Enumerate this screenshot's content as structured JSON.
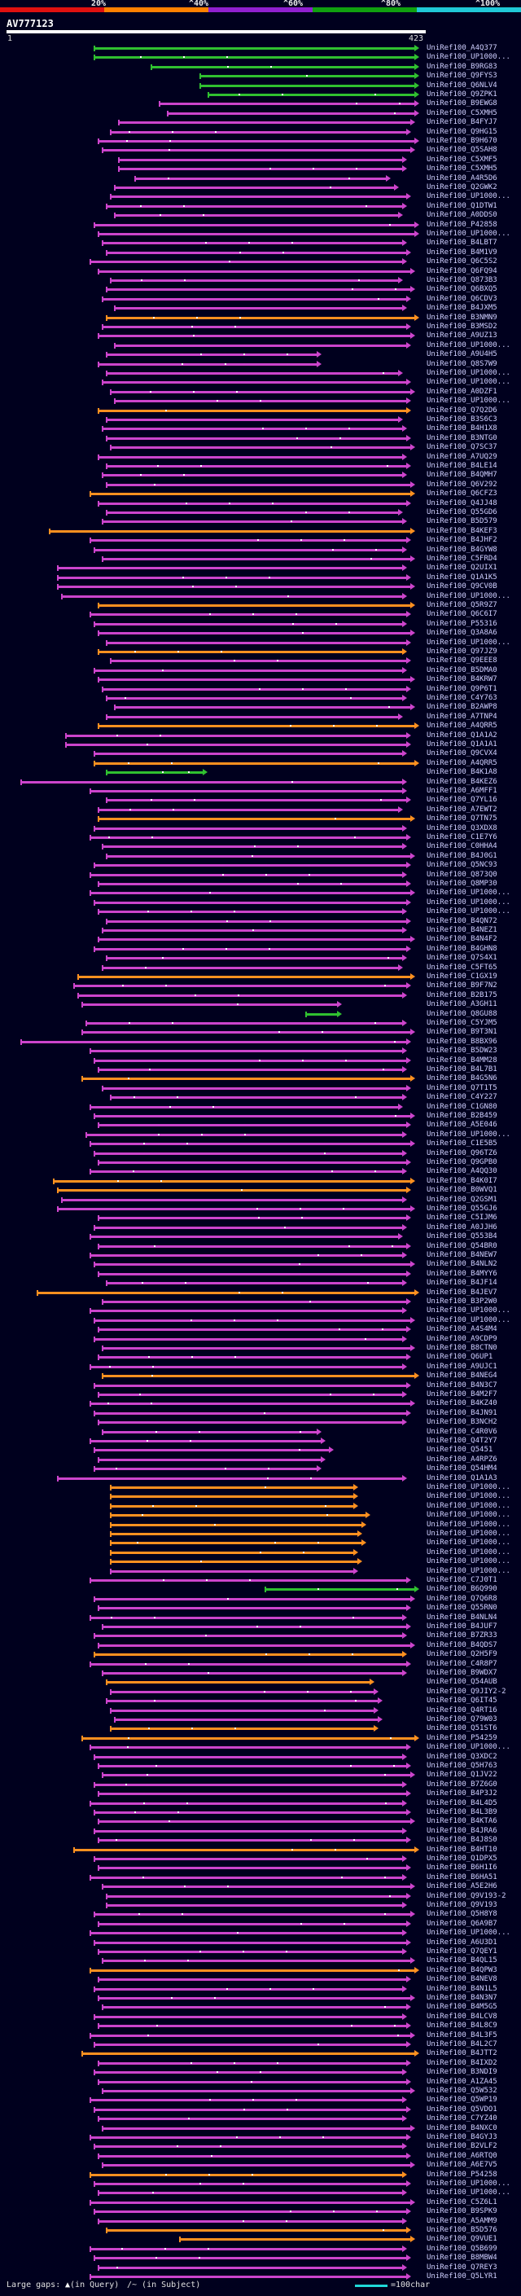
{
  "legend": {
    "colors": [
      "#e01010",
      "#ff8000",
      "#9020d0",
      "#10a010",
      "#20c8d8"
    ],
    "labels": [
      "20%",
      "^40%",
      "^60%",
      "^80%",
      "^100%"
    ]
  },
  "query": {
    "name": "AV777123",
    "start": "1",
    "end": "423"
  },
  "color_map": {
    "o": "#ff9020",
    "m": "#cc44cc",
    "g": "#30c030"
  },
  "hits": [
    [
      "UniRef100_A4Q377",
      115,
      515,
      "g"
    ],
    [
      "UniRef100_UP1000...",
      115,
      515,
      "g"
    ],
    [
      "UniRef100_B9RG83",
      185,
      515,
      "g"
    ],
    [
      "UniRef100_Q9FYS3",
      245,
      515,
      "g"
    ],
    [
      "UniRef100_Q6NLV4",
      245,
      515,
      "g"
    ],
    [
      "UniRef100_Q9ZPK1",
      255,
      515,
      "g"
    ],
    [
      "UniRef100_B9EWG8",
      195,
      515,
      "m"
    ],
    [
      "UniRef100_C5XMH5",
      205,
      515,
      "m"
    ],
    [
      "UniRef100_B4FYJ7",
      145,
      510,
      "m"
    ],
    [
      "UniRef100_Q9HG15",
      135,
      505,
      "m"
    ],
    [
      "UniRef100_B9H670",
      120,
      515,
      "m"
    ],
    [
      "UniRef100_Q5SAH8",
      125,
      510,
      "m"
    ],
    [
      "UniRef100_C5XMF5",
      145,
      500,
      "m"
    ],
    [
      "UniRef100_C5XMH5",
      145,
      500,
      "m"
    ],
    [
      "UniRef100_A4R5D6",
      165,
      480,
      "m"
    ],
    [
      "UniRef100_Q2GWK2",
      140,
      490,
      "m"
    ],
    [
      "UniRef100_UP1000...",
      135,
      505,
      "m"
    ],
    [
      "UniRef100_Q1DTW1",
      130,
      500,
      "m"
    ],
    [
      "UniRef100_A0DDS0",
      140,
      495,
      "m"
    ],
    [
      "UniRef100_P42858",
      115,
      515,
      "m"
    ],
    [
      "UniRef100_UP1000...",
      120,
      515,
      "m"
    ],
    [
      "UniRef100_B4LBT7",
      125,
      500,
      "m"
    ],
    [
      "UniRef100_B4M1V9",
      130,
      505,
      "m"
    ],
    [
      "UniRef100_Q6C5S2",
      110,
      500,
      "m"
    ],
    [
      "UniRef100_Q6FQ94",
      120,
      510,
      "m"
    ],
    [
      "UniRef100_Q873B3",
      135,
      495,
      "m"
    ],
    [
      "UniRef100_Q6BXQ5",
      130,
      510,
      "m"
    ],
    [
      "UniRef100_Q6CDV3",
      125,
      505,
      "m"
    ],
    [
      "UniRef100_B4JXM5",
      140,
      500,
      "m"
    ],
    [
      "UniRef100_B3NMN9",
      130,
      515,
      "o"
    ],
    [
      "UniRef100_B3MSD2",
      125,
      505,
      "m"
    ],
    [
      "UniRef100_A9UZ13",
      120,
      510,
      "m"
    ],
    [
      "UniRef100_UP1000...",
      140,
      505,
      "m"
    ],
    [
      "UniRef100_A9U4H5",
      130,
      395,
      "m"
    ],
    [
      "UniRef100_Q8S7W9",
      120,
      395,
      "m"
    ],
    [
      "UniRef100_UP1000...",
      130,
      495,
      "m"
    ],
    [
      "UniRef100_UP1000...",
      125,
      505,
      "m"
    ],
    [
      "UniRef100_A0DZF1",
      135,
      510,
      "m"
    ],
    [
      "UniRef100_UP1000...",
      140,
      505,
      "m"
    ],
    [
      "UniRef100_Q7Q2D6",
      120,
      505,
      "o"
    ],
    [
      "UniRef100_B3S6C3",
      130,
      495,
      "m"
    ],
    [
      "UniRef100_B4H1X8",
      125,
      500,
      "m"
    ],
    [
      "UniRef100_B3NTG0",
      130,
      505,
      "m"
    ],
    [
      "UniRef100_Q7SC37",
      135,
      510,
      "m"
    ],
    [
      "UniRef100_A7UQ29",
      120,
      500,
      "m"
    ],
    [
      "UniRef100_B4LE14",
      130,
      505,
      "m"
    ],
    [
      "UniRef100_B4QMH7",
      125,
      500,
      "m"
    ],
    [
      "UniRef100_Q6V292",
      130,
      510,
      "m"
    ],
    [
      "UniRef100_Q6CFZ3",
      110,
      510,
      "o"
    ],
    [
      "UniRef100_Q4JJ48",
      120,
      505,
      "m"
    ],
    [
      "UniRef100_Q55GD6",
      130,
      495,
      "m"
    ],
    [
      "UniRef100_B5D579",
      125,
      500,
      "m"
    ],
    [
      "UniRef100_B4KEF3",
      60,
      510,
      "o"
    ],
    [
      "UniRef100_B4JHF2",
      110,
      505,
      "m"
    ],
    [
      "UniRef100_B4GYW8",
      115,
      500,
      "m"
    ],
    [
      "UniRef100_C5FRD4",
      125,
      510,
      "m"
    ],
    [
      "UniRef100_Q2UIX1",
      70,
      500,
      "m"
    ],
    [
      "UniRef100_Q1A1K5",
      70,
      505,
      "m"
    ],
    [
      "UniRef100_Q9CV0B",
      70,
      510,
      "m"
    ],
    [
      "UniRef100_UP1000...",
      75,
      500,
      "m"
    ],
    [
      "UniRef100_Q5R9Z7",
      120,
      510,
      "o"
    ],
    [
      "UniRef100_Q6C6I7",
      110,
      505,
      "m"
    ],
    [
      "UniRef100_P55316",
      115,
      500,
      "m"
    ],
    [
      "UniRef100_Q3A8A6",
      120,
      510,
      "m"
    ],
    [
      "UniRef100_UP1000...",
      130,
      505,
      "m"
    ],
    [
      "UniRef100_Q97JZ9",
      120,
      500,
      "o"
    ],
    [
      "UniRef100_Q9EEE8",
      135,
      505,
      "m"
    ],
    [
      "UniRef100_B5DMA0",
      115,
      500,
      "m"
    ],
    [
      "UniRef100_B4KRW7",
      120,
      510,
      "m"
    ],
    [
      "UniRef100_Q9P6T1",
      125,
      505,
      "m"
    ],
    [
      "UniRef100_C4Y763",
      130,
      500,
      "m"
    ],
    [
      "UniRef100_B2AWP8",
      140,
      510,
      "m"
    ],
    [
      "UniRef100_A7TNP4",
      130,
      495,
      "m"
    ],
    [
      "UniRef100_A4QRR5",
      120,
      515,
      "o"
    ],
    [
      "UniRef100_Q1A1A2",
      80,
      505,
      "m"
    ],
    [
      "UniRef100_Q1A1A1",
      80,
      505,
      "m"
    ],
    [
      "UniRef100_Q9CVX4",
      115,
      500,
      "m"
    ],
    [
      "UniRef100_A4QRR5",
      115,
      515,
      "o"
    ],
    [
      "UniRef100_B4K1A8",
      130,
      255,
      "g"
    ],
    [
      "UniRef100_B4KEZ6",
      25,
      500,
      "m"
    ],
    [
      "UniRef100_A6MFF1",
      110,
      500,
      "m"
    ],
    [
      "UniRef100_Q7YL16",
      130,
      505,
      "m"
    ],
    [
      "UniRef100_A7EWT2",
      120,
      495,
      "m"
    ],
    [
      "UniRef100_Q7TN75",
      120,
      510,
      "o"
    ],
    [
      "UniRef100_Q3XDX8",
      115,
      500,
      "m"
    ],
    [
      "UniRef100_C1E7Y6",
      110,
      505,
      "m"
    ],
    [
      "UniRef100_C0HHA4",
      125,
      500,
      "m"
    ],
    [
      "UniRef100_B4J0G1",
      130,
      510,
      "m"
    ],
    [
      "UniRef100_Q5NC93",
      115,
      505,
      "m"
    ],
    [
      "UniRef100_Q873Q0",
      110,
      500,
      "m"
    ],
    [
      "UniRef100_Q8MP30",
      120,
      505,
      "m"
    ],
    [
      "UniRef100_UP1000...",
      110,
      510,
      "m"
    ],
    [
      "UniRef100_UP1000...",
      115,
      505,
      "m"
    ],
    [
      "UniRef100_UP1000...",
      120,
      500,
      "m"
    ],
    [
      "UniRef100_B4QN72",
      130,
      505,
      "m"
    ],
    [
      "UniRef100_B4NEZ1",
      125,
      500,
      "m"
    ],
    [
      "UniRef100_B4N4F2",
      120,
      510,
      "m"
    ],
    [
      "UniRef100_B4GHN8",
      115,
      505,
      "m"
    ],
    [
      "UniRef100_Q7S4X1",
      130,
      500,
      "m"
    ],
    [
      "UniRef100_C5FT65",
      125,
      495,
      "m"
    ],
    [
      "UniRef100_C1GX19",
      95,
      510,
      "o"
    ],
    [
      "UniRef100_B9F7N2",
      90,
      505,
      "m"
    ],
    [
      "UniRef100_B2B175",
      95,
      500,
      "m"
    ],
    [
      "UniRef100_A3GH11",
      100,
      420,
      "m"
    ],
    [
      "UniRef100_Q8GU88",
      375,
      420,
      "g"
    ],
    [
      "UniRef100_C5YJM5",
      105,
      500,
      "m"
    ],
    [
      "UniRef100_B9T3N1",
      100,
      510,
      "m"
    ],
    [
      "UniRef100_B8BX96",
      25,
      505,
      "m"
    ],
    [
      "UniRef100_B5DW23",
      110,
      500,
      "m"
    ],
    [
      "UniRef100_B4MM28",
      115,
      505,
      "m"
    ],
    [
      "UniRef100_B4L7B1",
      120,
      500,
      "m"
    ],
    [
      "UniRef100_B4G5N6",
      100,
      510,
      "o"
    ],
    [
      "UniRef100_Q7T1T5",
      125,
      505,
      "m"
    ],
    [
      "UniRef100_C4Y227",
      135,
      500,
      "m"
    ],
    [
      "UniRef100_C1GN80",
      110,
      495,
      "m"
    ],
    [
      "UniRef100_B2B459",
      115,
      510,
      "m"
    ],
    [
      "UniRef100_A5E046",
      120,
      505,
      "m"
    ],
    [
      "UniRef100_UP1000...",
      105,
      500,
      "m"
    ],
    [
      "UniRef100_C1E5B5",
      110,
      510,
      "m"
    ],
    [
      "UniRef100_Q96TZ6",
      115,
      500,
      "m"
    ],
    [
      "UniRef100_Q9GPB0",
      120,
      505,
      "m"
    ],
    [
      "UniRef100_A4QQ30",
      110,
      500,
      "m"
    ],
    [
      "UniRef100_B4K0I7",
      65,
      510,
      "o"
    ],
    [
      "UniRef100_B0WVQ1",
      70,
      505,
      "o"
    ],
    [
      "UniRef100_Q2GSM1",
      75,
      500,
      "m"
    ],
    [
      "UniRef100_Q55GJ6",
      70,
      510,
      "m"
    ],
    [
      "UniRef100_C5IJM6",
      120,
      505,
      "m"
    ],
    [
      "UniRef100_A0JJH6",
      115,
      500,
      "m"
    ],
    [
      "UniRef100_Q553B4",
      110,
      495,
      "m"
    ],
    [
      "UniRef100_Q54BR0",
      120,
      505,
      "m"
    ],
    [
      "UniRef100_B4NEW7",
      110,
      500,
      "m"
    ],
    [
      "UniRef100_B4NLN2",
      115,
      510,
      "m"
    ],
    [
      "UniRef100_B4MYY6",
      120,
      505,
      "m"
    ],
    [
      "UniRef100_B4JF14",
      130,
      500,
      "m"
    ],
    [
      "UniRef100_B4JEV7",
      45,
      515,
      "o"
    ],
    [
      "UniRef100_B3P2W0",
      125,
      505,
      "m"
    ],
    [
      "UniRef100_UP1000...",
      110,
      500,
      "m"
    ],
    [
      "UniRef100_UP1000...",
      115,
      510,
      "m"
    ],
    [
      "UniRef100_A4S4M4",
      120,
      505,
      "m"
    ],
    [
      "UniRef100_A9CDP9",
      115,
      500,
      "m"
    ],
    [
      "UniRef100_B8CTN0",
      125,
      510,
      "m"
    ],
    [
      "UniRef100_Q6UP1",
      120,
      505,
      "m"
    ],
    [
      "UniRef100_A9UJC1",
      110,
      500,
      "m"
    ],
    [
      "UniRef100_B4NEG4",
      125,
      515,
      "o"
    ],
    [
      "UniRef100_B4N3C7",
      115,
      505,
      "m"
    ],
    [
      "UniRef100_B4M2F7",
      120,
      500,
      "m"
    ],
    [
      "UniRef100_B4KZ40",
      110,
      510,
      "m"
    ],
    [
      "UniRef100_B4JN91",
      115,
      505,
      "m"
    ],
    [
      "UniRef100_B3NCH2",
      120,
      500,
      "m"
    ],
    [
      "UniRef100_C4R0V6",
      125,
      395,
      "m"
    ],
    [
      "UniRef100_Q4T2Y7",
      110,
      400,
      "m"
    ],
    [
      "UniRef100_Q5451",
      115,
      410,
      "m"
    ],
    [
      "UniRef100_A4RPZ6",
      120,
      400,
      "m"
    ],
    [
      "UniRef100_Q54HM4",
      115,
      395,
      "m"
    ],
    [
      "UniRef100_Q1A1A3",
      70,
      500,
      "m"
    ],
    [
      "UniRef100_UP1000...",
      135,
      440,
      "o"
    ],
    [
      "UniRef100_UP1000...",
      135,
      440,
      "o"
    ],
    [
      "UniRef100_UP1000...",
      135,
      440,
      "o"
    ],
    [
      "UniRef100_UP1000...",
      135,
      455,
      "o"
    ],
    [
      "UniRef100_UP1000...",
      135,
      450,
      "o"
    ],
    [
      "UniRef100_UP1000...",
      135,
      445,
      "o"
    ],
    [
      "UniRef100_UP1000...",
      135,
      450,
      "o"
    ],
    [
      "UniRef100_UP1000...",
      135,
      440,
      "o"
    ],
    [
      "UniRef100_UP1000...",
      135,
      445,
      "o"
    ],
    [
      "UniRef100_UP1000...",
      135,
      440,
      "m"
    ],
    [
      "UniRef100_C7J0T1",
      110,
      505,
      "m"
    ],
    [
      "UniRef100_B6Q990",
      325,
      515,
      "g"
    ],
    [
      "UniRef100_Q7Q6R8",
      115,
      510,
      "m"
    ],
    [
      "UniRef100_Q55RN0",
      120,
      505,
      "m"
    ],
    [
      "UniRef100_B4NLN4",
      110,
      500,
      "m"
    ],
    [
      "UniRef100_B4JUF7",
      125,
      505,
      "m"
    ],
    [
      "UniRef100_B7ZR33",
      115,
      500,
      "m"
    ],
    [
      "UniRef100_B4QDS7",
      120,
      510,
      "m"
    ],
    [
      "UniRef100_Q2H5F9",
      115,
      500,
      "o"
    ],
    [
      "UniRef100_C4R8P7",
      110,
      505,
      "m"
    ],
    [
      "UniRef100_B9WDX7",
      125,
      500,
      "m"
    ],
    [
      "UniRef100_Q54AUB",
      130,
      460,
      "o"
    ],
    [
      "UniRef100_Q9JIY2-2",
      135,
      465,
      "m"
    ],
    [
      "UniRef100_Q6IT45",
      130,
      470,
      "m"
    ],
    [
      "UniRef100_Q4RT16",
      135,
      465,
      "m"
    ],
    [
      "UniRef100_Q79W03",
      140,
      470,
      "m"
    ],
    [
      "UniRef100_Q51ST6",
      135,
      465,
      "o"
    ],
    [
      "UniRef100_P54259",
      100,
      515,
      "o"
    ],
    [
      "UniRef100_UP1000...",
      110,
      505,
      "m"
    ],
    [
      "UniRef100_Q3XDC2",
      115,
      500,
      "m"
    ],
    [
      "UniRef100_Q5H763",
      120,
      505,
      "m"
    ],
    [
      "UniRef100_Q1JV22",
      125,
      510,
      "m"
    ],
    [
      "UniRef100_B7Z6G0",
      115,
      500,
      "m"
    ],
    [
      "UniRef100_B4P3J2",
      120,
      505,
      "m"
    ],
    [
      "UniRef100_B4L4D5",
      110,
      500,
      "m"
    ],
    [
      "UniRef100_B4L3B9",
      115,
      505,
      "m"
    ],
    [
      "UniRef100_B4KTA6",
      120,
      510,
      "m"
    ],
    [
      "UniRef100_B4JRA6",
      115,
      500,
      "m"
    ],
    [
      "UniRef100_B4J8S0",
      120,
      505,
      "m"
    ],
    [
      "UniRef100_B4HT10",
      90,
      515,
      "o"
    ],
    [
      "UniRef100_Q1DPX5",
      115,
      500,
      "m"
    ],
    [
      "UniRef100_B6H1I6",
      120,
      505,
      "m"
    ],
    [
      "UniRef100_B6HA51",
      110,
      500,
      "m"
    ],
    [
      "UniRef100_A5E2H6",
      125,
      510,
      "m"
    ],
    [
      "UniRef100_Q9V193-2",
      130,
      505,
      "m"
    ],
    [
      "UniRef100_Q9V193",
      130,
      500,
      "m"
    ],
    [
      "UniRef100_Q5H8Y8",
      115,
      510,
      "m"
    ],
    [
      "UniRef100_Q6A9B7",
      120,
      505,
      "m"
    ],
    [
      "UniRef100_UP1000...",
      110,
      500,
      "m"
    ],
    [
      "UniRef100_A6U3D1",
      115,
      505,
      "m"
    ],
    [
      "UniRef100_Q7QEY1",
      120,
      500,
      "m"
    ],
    [
      "UniRef100_B4QL15",
      125,
      510,
      "m"
    ],
    [
      "UniRef100_B4QPW3",
      110,
      515,
      "o"
    ],
    [
      "UniRef100_B4NEV8",
      120,
      505,
      "m"
    ],
    [
      "UniRef100_B4N1L5",
      115,
      500,
      "m"
    ],
    [
      "UniRef100_B4N3N7",
      120,
      510,
      "m"
    ],
    [
      "UniRef100_B4M5G5",
      125,
      505,
      "m"
    ],
    [
      "UniRef100_B4LCV8",
      115,
      500,
      "m"
    ],
    [
      "UniRef100_B4L8C9",
      120,
      505,
      "m"
    ],
    [
      "UniRef100_B4L3F5",
      110,
      510,
      "m"
    ],
    [
      "UniRef100_B4L2C7",
      115,
      505,
      "m"
    ],
    [
      "UniRef100_B4JTT2",
      100,
      515,
      "o"
    ],
    [
      "UniRef100_B4IXD2",
      120,
      505,
      "m"
    ],
    [
      "UniRef100_B3NDI9",
      115,
      500,
      "m"
    ],
    [
      "UniRef100_A1ZA45",
      120,
      505,
      "m"
    ],
    [
      "UniRef100_Q5W532",
      125,
      510,
      "m"
    ],
    [
      "UniRef100_Q5WP19",
      110,
      500,
      "m"
    ],
    [
      "UniRef100_Q5VDO1",
      115,
      505,
      "m"
    ],
    [
      "UniRef100_C7YZ40",
      120,
      500,
      "m"
    ],
    [
      "UniRef100_B4NXC0",
      125,
      510,
      "m"
    ],
    [
      "UniRef100_B4GYJ3",
      110,
      505,
      "m"
    ],
    [
      "UniRef100_B2VLF2",
      115,
      500,
      "m"
    ],
    [
      "UniRef100_A6RTQ0",
      120,
      505,
      "m"
    ],
    [
      "UniRef100_A6E7V5",
      125,
      510,
      "m"
    ],
    [
      "UniRef100_P54258",
      110,
      500,
      "o"
    ],
    [
      "UniRef100_UP1000...",
      115,
      505,
      "m"
    ],
    [
      "UniRef100_UP1000...",
      120,
      500,
      "m"
    ],
    [
      "UniRef100_C5Z6L1",
      110,
      510,
      "m"
    ],
    [
      "UniRef100_B9SPK9",
      115,
      505,
      "m"
    ],
    [
      "UniRef100_A5AMM9",
      120,
      500,
      "m"
    ],
    [
      "UniRef100_B5D576",
      130,
      505,
      "o"
    ],
    [
      "UniRef100_Q9VUE1",
      220,
      510,
      "o"
    ],
    [
      "UniRef100_Q5B699",
      110,
      500,
      "m"
    ],
    [
      "UniRef100_B8MBW4",
      115,
      505,
      "m"
    ],
    [
      "UniRef100_Q7REY3",
      120,
      500,
      "m"
    ],
    [
      "UniRef100_Q5LYR1",
      110,
      505,
      "m"
    ]
  ],
  "footer": {
    "gaps_label": "Large gaps:",
    "query_note": "(in Query)",
    "subject_note": "/~ (in Subject)",
    "scale_label": "=100char"
  }
}
